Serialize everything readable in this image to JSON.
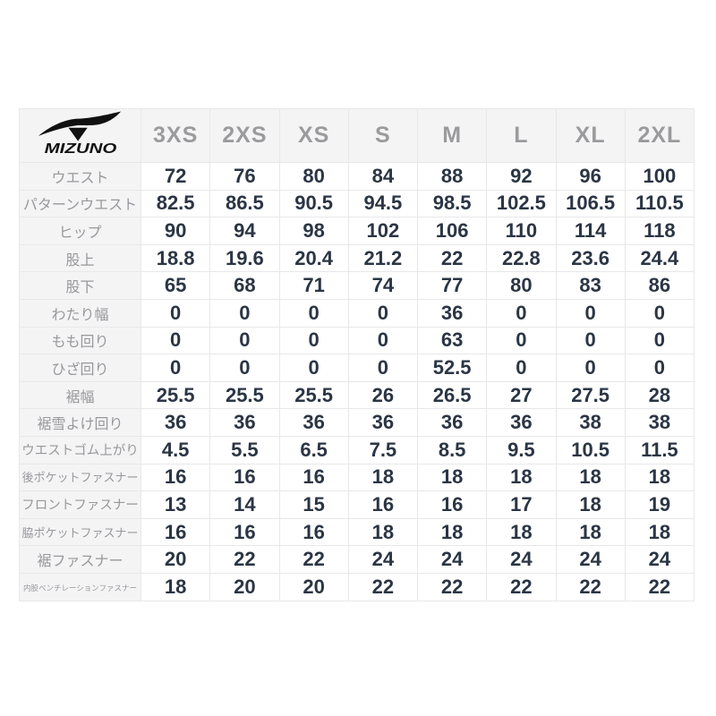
{
  "brand": {
    "name": "Mizuno",
    "logo_text": "MIZUNO",
    "logo_icon": "mizuno-runbird-icon"
  },
  "table": {
    "size_headers": [
      "3XS",
      "2XS",
      "XS",
      "S",
      "M",
      "L",
      "XL",
      "2XL"
    ],
    "rows": [
      {
        "label": "ウエスト",
        "values": [
          "72",
          "76",
          "80",
          "84",
          "88",
          "92",
          "96",
          "100"
        ]
      },
      {
        "label": "パターンウエスト",
        "values": [
          "82.5",
          "86.5",
          "90.5",
          "94.5",
          "98.5",
          "102.5",
          "106.5",
          "110.5"
        ]
      },
      {
        "label": "ヒップ",
        "values": [
          "90",
          "94",
          "98",
          "102",
          "106",
          "110",
          "114",
          "118"
        ]
      },
      {
        "label": "股上",
        "values": [
          "18.8",
          "19.6",
          "20.4",
          "21.2",
          "22",
          "22.8",
          "23.6",
          "24.4"
        ]
      },
      {
        "label": "股下",
        "values": [
          "65",
          "68",
          "71",
          "74",
          "77",
          "80",
          "83",
          "86"
        ]
      },
      {
        "label": "わたり幅",
        "values": [
          "0",
          "0",
          "0",
          "0",
          "36",
          "0",
          "0",
          "0"
        ]
      },
      {
        "label": "もも回り",
        "values": [
          "0",
          "0",
          "0",
          "0",
          "63",
          "0",
          "0",
          "0"
        ]
      },
      {
        "label": "ひざ回り",
        "values": [
          "0",
          "0",
          "0",
          "0",
          "52.5",
          "0",
          "0",
          "0"
        ]
      },
      {
        "label": "裾幅",
        "values": [
          "25.5",
          "25.5",
          "25.5",
          "26",
          "26.5",
          "27",
          "27.5",
          "28"
        ]
      },
      {
        "label": "裾雪よけ回り",
        "values": [
          "36",
          "36",
          "36",
          "36",
          "36",
          "36",
          "38",
          "38"
        ]
      },
      {
        "label": "ウエストゴム上がり",
        "values": [
          "4.5",
          "5.5",
          "6.5",
          "7.5",
          "8.5",
          "9.5",
          "10.5",
          "11.5"
        ]
      },
      {
        "label": "後ポケットファスナー",
        "values": [
          "16",
          "16",
          "16",
          "18",
          "18",
          "18",
          "18",
          "18"
        ]
      },
      {
        "label": "フロントファスナー",
        "values": [
          "13",
          "14",
          "15",
          "16",
          "16",
          "17",
          "18",
          "19"
        ]
      },
      {
        "label": "脇ポケットファスナー",
        "values": [
          "16",
          "16",
          "16",
          "18",
          "18",
          "18",
          "18",
          "18"
        ]
      },
      {
        "label": "裾ファスナー",
        "values": [
          "20",
          "22",
          "22",
          "24",
          "24",
          "24",
          "24",
          "24"
        ]
      },
      {
        "label": "内股ベンチレーションファスナー",
        "values": [
          "18",
          "20",
          "20",
          "22",
          "22",
          "22",
          "22",
          "22"
        ]
      }
    ]
  },
  "colors": {
    "value_text": "#2b3544",
    "label_text": "#98989c",
    "header_text": "#9b9b9e",
    "header_bg": "#f4f4f5",
    "border": "#e8e8ea",
    "logo": "#111111",
    "page_bg": "#ffffff"
  }
}
